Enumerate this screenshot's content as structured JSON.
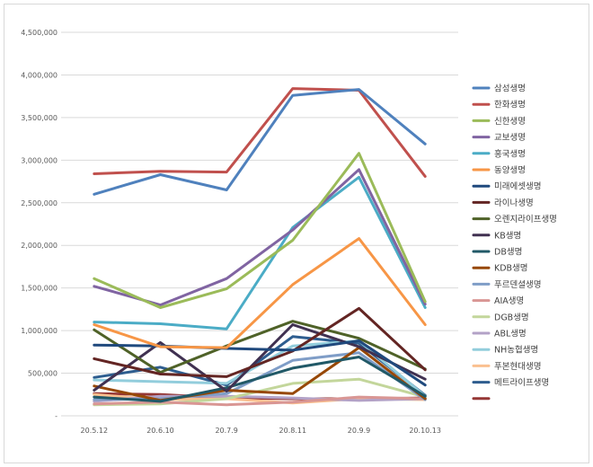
{
  "chart_data": {
    "type": "line",
    "title": "",
    "xlabel": "",
    "ylabel": "",
    "ylim": [
      0,
      4500000
    ],
    "grid": true,
    "legend_position": "right",
    "y_ticks": [
      {
        "value": 0,
        "label": "-"
      },
      {
        "value": 500000,
        "label": "500,000"
      },
      {
        "value": 1000000,
        "label": "1,000,000"
      },
      {
        "value": 1500000,
        "label": "1,500,000"
      },
      {
        "value": 2000000,
        "label": "2,000,000"
      },
      {
        "value": 2500000,
        "label": "2,500,000"
      },
      {
        "value": 3000000,
        "label": "3,000,000"
      },
      {
        "value": 3500000,
        "label": "3,500,000"
      },
      {
        "value": 4000000,
        "label": "4,000,000"
      },
      {
        "value": 4500000,
        "label": "4,500,000"
      }
    ],
    "categories": [
      "20.5.12",
      "20.6.10",
      "20.7.9",
      "20.8.11",
      "20.9.9",
      "20.10.13"
    ],
    "series": [
      {
        "name": "삼성생명",
        "color": "#4f81bd",
        "values": [
          2600000,
          2830000,
          2650000,
          3760000,
          3830000,
          3190000
        ]
      },
      {
        "name": "한화생명",
        "color": "#c0504d",
        "values": [
          2840000,
          2870000,
          2860000,
          3840000,
          3820000,
          2810000
        ]
      },
      {
        "name": "신한생명",
        "color": "#9bbb59",
        "values": [
          1610000,
          1270000,
          1490000,
          2060000,
          3080000,
          1340000
        ]
      },
      {
        "name": "교보생명",
        "color": "#8064a2",
        "values": [
          1520000,
          1300000,
          1610000,
          2180000,
          2890000,
          1310000
        ]
      },
      {
        "name": "흥국생명",
        "color": "#4bacc6",
        "values": [
          1100000,
          1080000,
          1020000,
          2210000,
          2800000,
          1270000
        ]
      },
      {
        "name": "동양생명",
        "color": "#f79646",
        "values": [
          1070000,
          810000,
          800000,
          1540000,
          2080000,
          1070000
        ]
      },
      {
        "name": "미래에셋생명",
        "color": "#1f497d",
        "values": [
          830000,
          820000,
          790000,
          770000,
          880000,
          360000
        ]
      },
      {
        "name": "라이나생명",
        "color": "#632523",
        "values": [
          670000,
          490000,
          460000,
          760000,
          1260000,
          540000
        ]
      },
      {
        "name": "오렌지라이프생명",
        "color": "#4f6228",
        "values": [
          1010000,
          510000,
          820000,
          1110000,
          910000,
          550000
        ]
      },
      {
        "name": "KB생명",
        "color": "#403151",
        "values": [
          300000,
          860000,
          290000,
          1070000,
          810000,
          430000
        ]
      },
      {
        "name": "DB생명",
        "color": "#215967",
        "values": [
          220000,
          170000,
          330000,
          560000,
          690000,
          230000
        ]
      },
      {
        "name": "KDB생명",
        "color": "#974806",
        "values": [
          350000,
          180000,
          300000,
          260000,
          800000,
          200000
        ]
      },
      {
        "name": "푸르덴셜생명",
        "color": "#7f9dc7",
        "values": [
          190000,
          200000,
          260000,
          650000,
          740000,
          190000
        ]
      },
      {
        "name": "AIA생명",
        "color": "#d99694",
        "values": [
          140000,
          160000,
          130000,
          160000,
          220000,
          200000
        ]
      },
      {
        "name": "DGB생명",
        "color": "#c3d69b",
        "values": [
          130000,
          140000,
          200000,
          380000,
          430000,
          220000
        ]
      },
      {
        "name": "ABL생명",
        "color": "#b3a2c7",
        "values": [
          170000,
          230000,
          230000,
          210000,
          180000,
          200000
        ]
      },
      {
        "name": "NH농협생명",
        "color": "#92cddc",
        "values": [
          420000,
          400000,
          380000,
          820000,
          880000,
          230000
        ]
      },
      {
        "name": "푸본현대생명",
        "color": "#fac090",
        "values": [
          250000,
          190000,
          200000,
          150000,
          200000,
          190000
        ]
      },
      {
        "name": "메트라이프생명",
        "color": "#2e5d8f",
        "values": [
          450000,
          570000,
          360000,
          930000,
          850000,
          240000
        ]
      },
      {
        "name": "",
        "color": "#953735",
        "values": [
          260000,
          250000,
          210000,
          200000,
          200000,
          210000
        ]
      }
    ]
  }
}
